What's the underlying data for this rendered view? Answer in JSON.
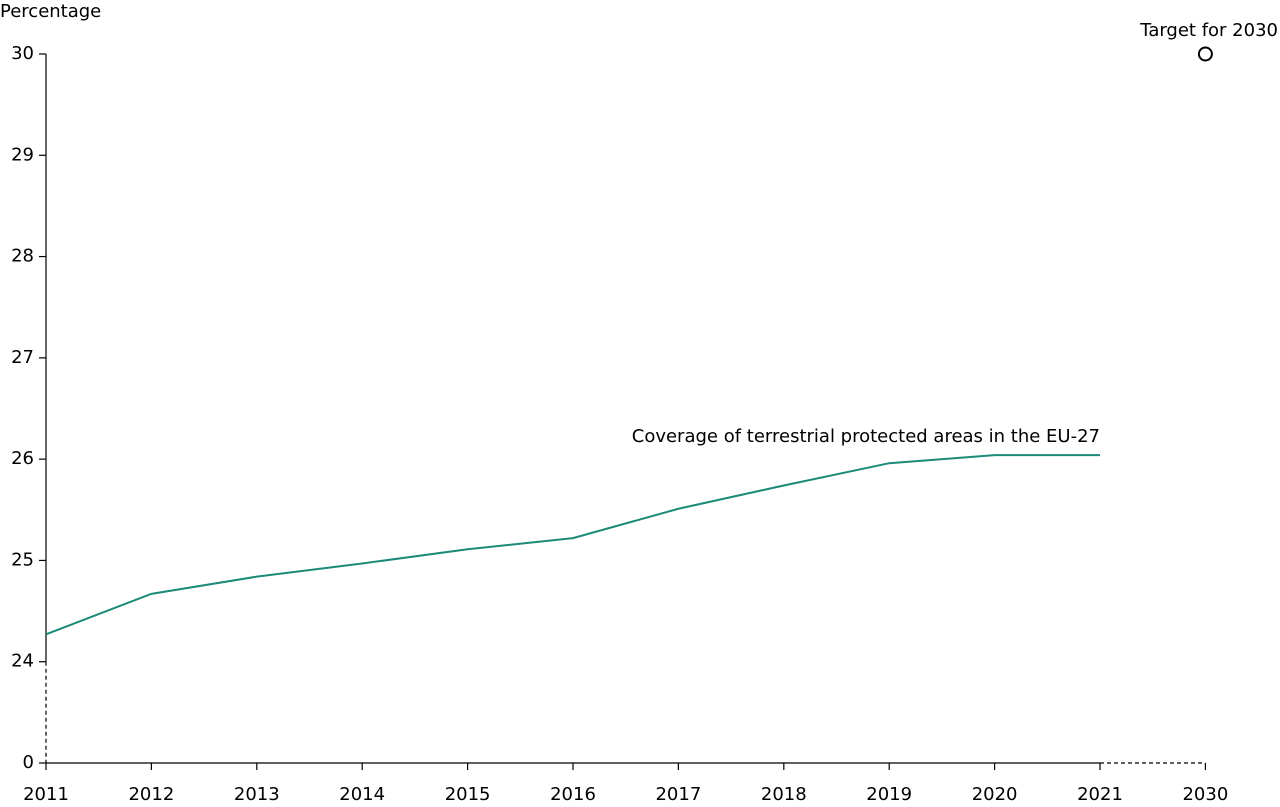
{
  "chart_data": {
    "type": "line",
    "y_axis_title": "Percentage",
    "categories": [
      "2011",
      "2012",
      "2013",
      "2014",
      "2015",
      "2016",
      "2017",
      "2018",
      "2019",
      "2020",
      "2021",
      "2030"
    ],
    "series": [
      {
        "name": "Coverage of terrestrial protected areas in the EU-27",
        "color": "#1b8a78",
        "values": [
          24.27,
          24.67,
          24.84,
          24.97,
          25.11,
          25.22,
          25.51,
          25.74,
          25.96,
          26.04,
          26.04,
          null
        ]
      },
      {
        "name": "Target for 2030",
        "color": "#000000",
        "values": [
          null,
          null,
          null,
          null,
          null,
          null,
          null,
          null,
          null,
          null,
          null,
          30
        ]
      }
    ],
    "ylim": [
      0,
      30
    ],
    "yticks": [
      0,
      24,
      25,
      26,
      27,
      28,
      29,
      30
    ],
    "y_axis_break": true
  }
}
